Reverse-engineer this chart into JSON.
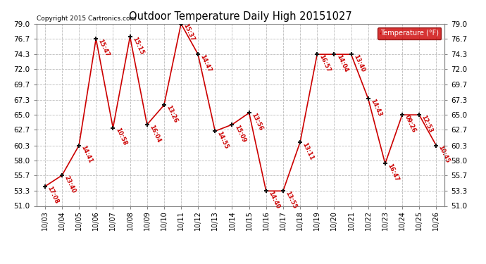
{
  "title": "Outdoor Temperature Daily High 20151027",
  "copyright": "Copyright 2015 Cartronics.com",
  "legend_label": "Temperature (°F)",
  "x_labels": [
    "10/03",
    "10/04",
    "10/05",
    "10/06",
    "10/07",
    "10/08",
    "10/09",
    "10/10",
    "10/11",
    "10/12",
    "10/13",
    "10/14",
    "10/15",
    "10/16",
    "10/17",
    "10/18",
    "10/19",
    "10/20",
    "10/21",
    "10/22",
    "10/23",
    "10/24",
    "10/25",
    "10/26"
  ],
  "y_values": [
    54.0,
    55.7,
    60.3,
    76.7,
    63.0,
    77.0,
    63.5,
    66.5,
    79.0,
    74.3,
    62.5,
    63.5,
    65.3,
    53.3,
    53.3,
    60.8,
    74.3,
    74.3,
    74.3,
    67.5,
    57.5,
    65.0,
    65.0,
    60.3
  ],
  "time_labels": [
    "17:08",
    "23:40",
    "14:41",
    "15:47",
    "10:58",
    "15:15",
    "16:04",
    "13:26",
    "15:37",
    "14:47",
    "14:55",
    "15:09",
    "13:56",
    "14:40",
    "13:55",
    "13:11",
    "16:57",
    "14:04",
    "13:40",
    "14:43",
    "16:47",
    "09:26",
    "12:53",
    "10:45"
  ],
  "ylim": [
    51.0,
    79.0
  ],
  "yticks": [
    51.0,
    53.3,
    55.7,
    58.0,
    60.3,
    62.7,
    65.0,
    67.3,
    69.7,
    72.0,
    74.3,
    76.7,
    79.0
  ],
  "ytick_labels": [
    "51.0",
    "53.3",
    "55.7",
    "58.0",
    "60.3",
    "62.7",
    "65.0",
    "67.3",
    "69.7",
    "72.0",
    "74.3",
    "76.7",
    "79.0"
  ],
  "line_color": "#cc0000",
  "marker_color": "#111111",
  "label_color": "#cc0000",
  "bg_color": "#ffffff",
  "grid_color": "#bbbbbb",
  "title_color": "#000000",
  "copyright_color": "#000000",
  "legend_bg": "#cc0000",
  "legend_text_color": "#ffffff",
  "fig_width": 6.9,
  "fig_height": 3.75,
  "dpi": 100
}
